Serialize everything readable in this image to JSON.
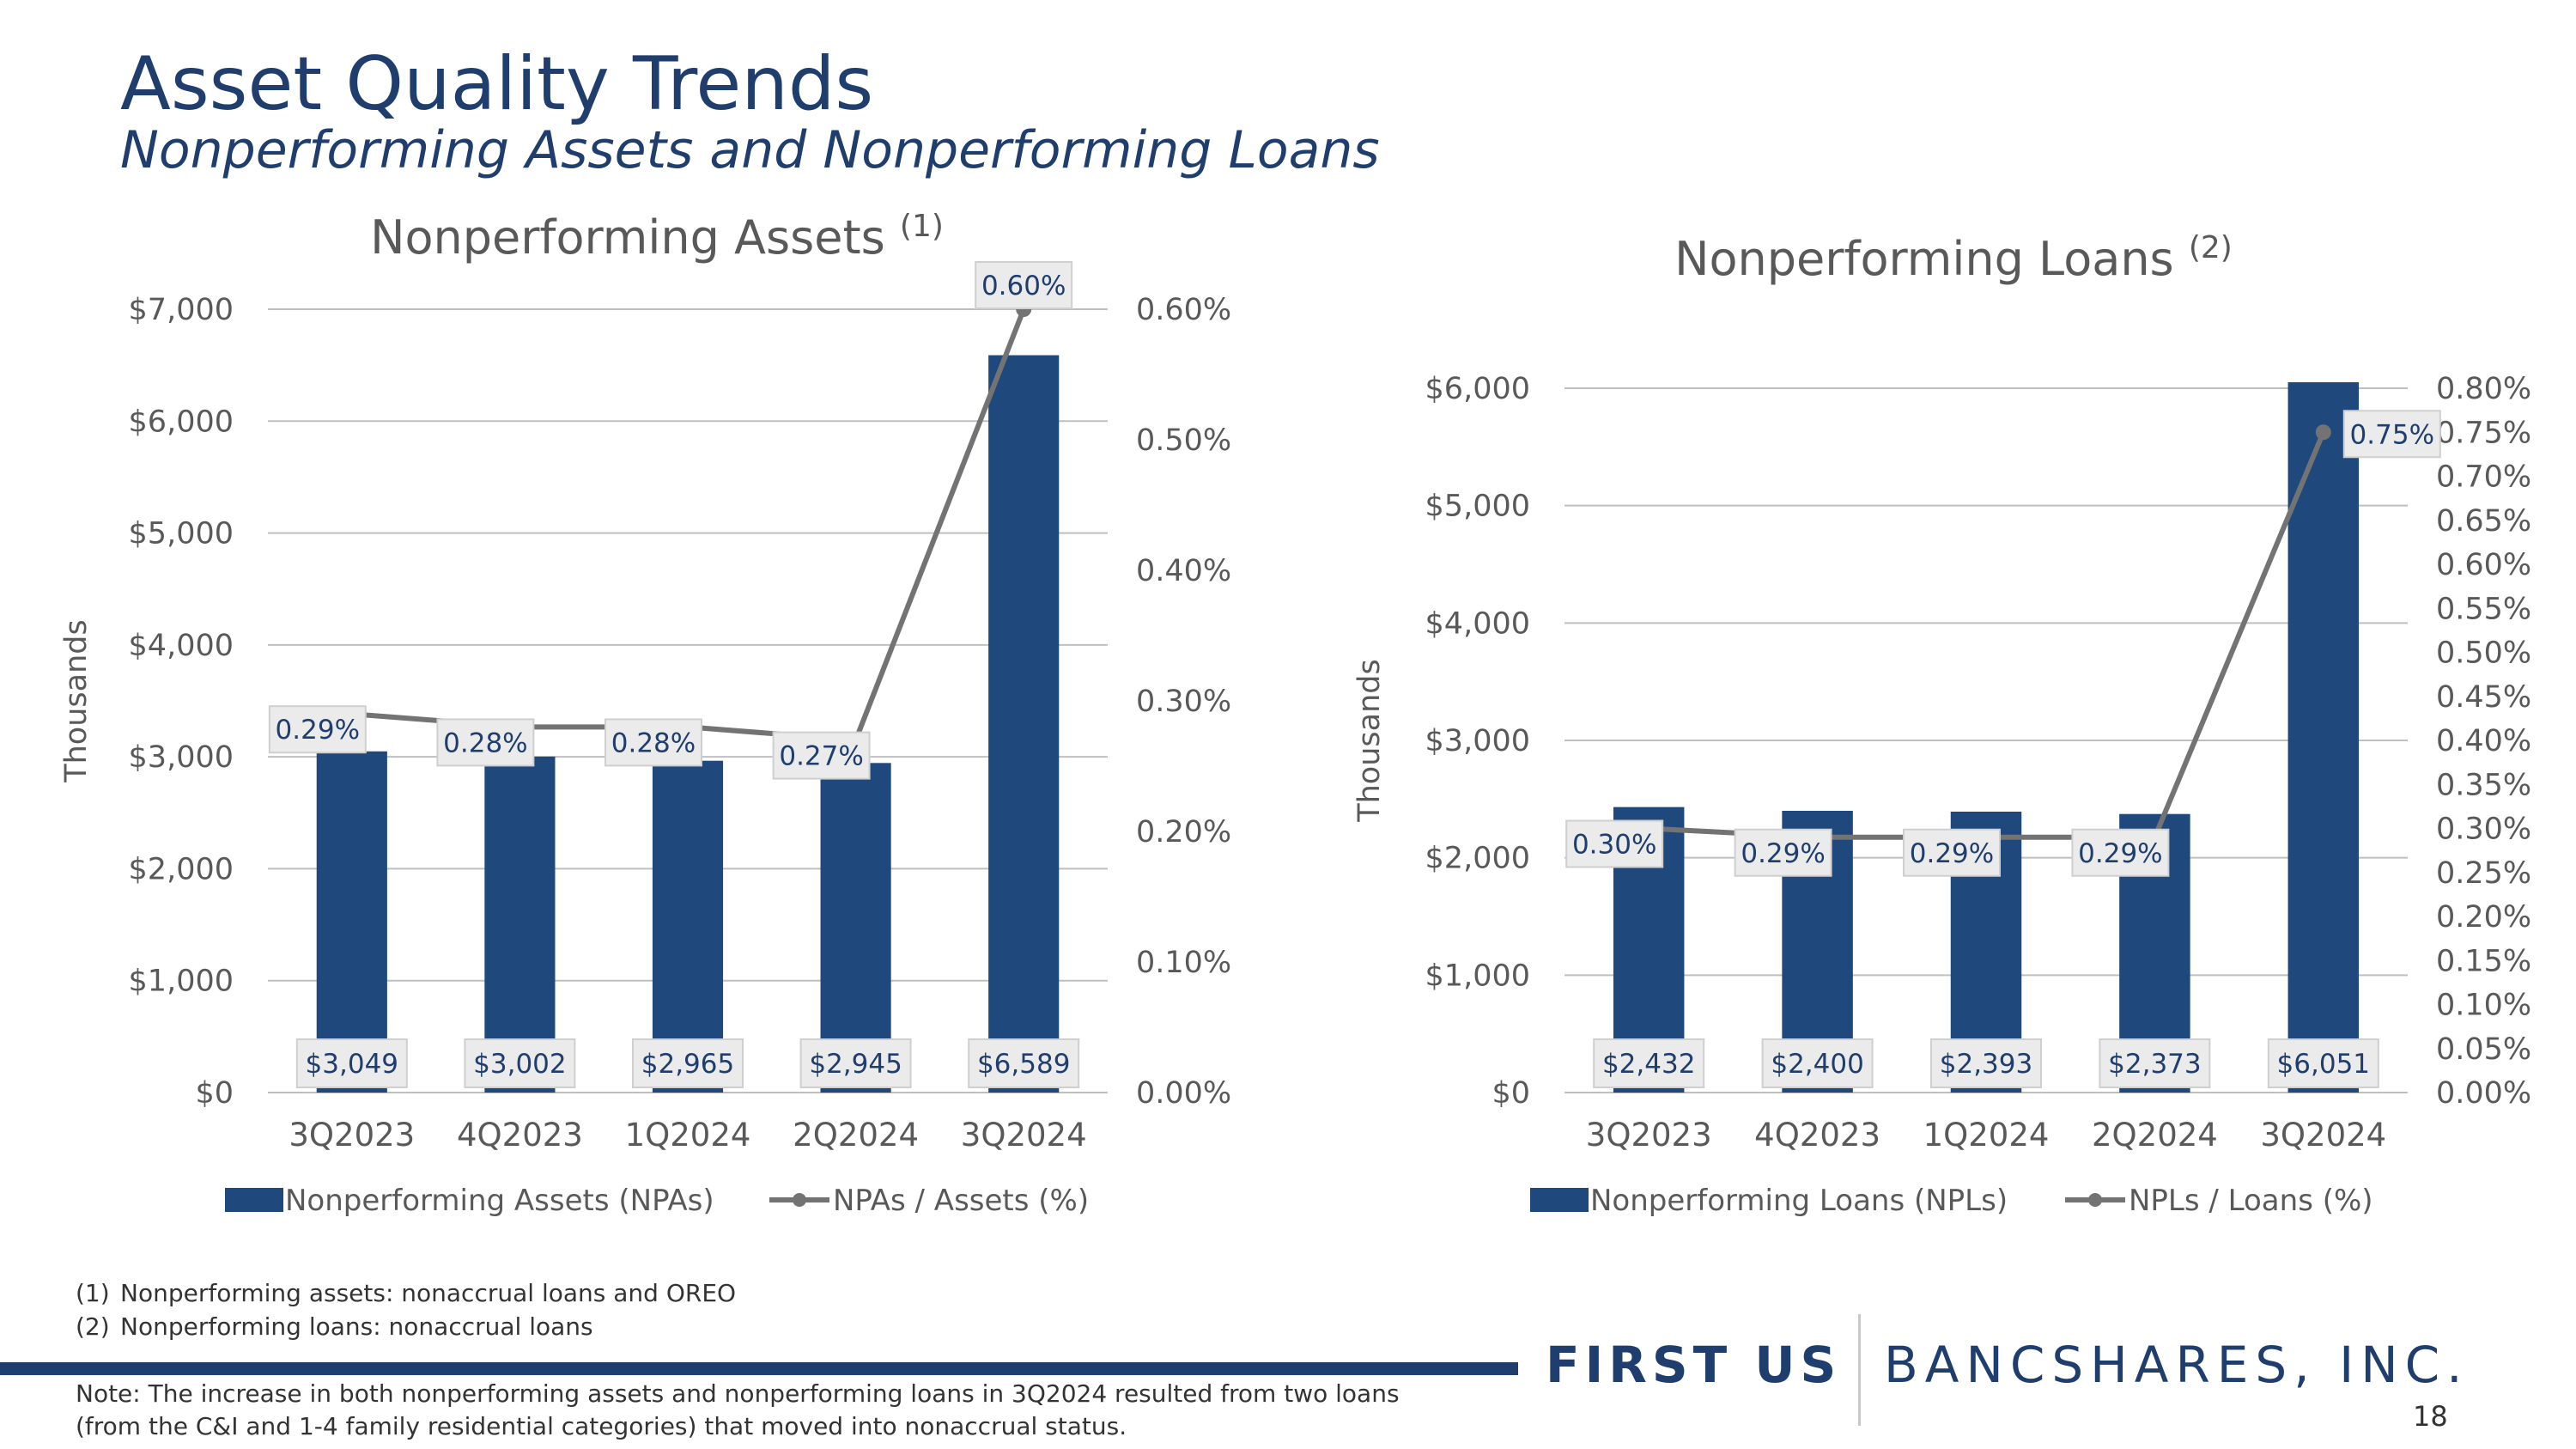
{
  "page": {
    "title": "Asset Quality Trends",
    "subtitle": "Nonperforming Assets and Nonperforming Loans",
    "footnotes": [
      {
        "num": "(1)",
        "text": "Nonperforming assets: nonaccrual loans and OREO"
      },
      {
        "num": "(2)",
        "text": "Nonperforming loans: nonaccrual loans"
      }
    ],
    "note": "Note: The increase in both nonperforming assets and nonperforming loans in 3Q2024 resulted from two loans (from the C&I and 1-4 family residential categories) that moved into nonaccrual status.",
    "logo_first": "FIRST US",
    "logo_rest": "BANCSHARES, INC.",
    "page_number": "18"
  },
  "colors": {
    "bar": "#1f497d",
    "line": "#737373",
    "label_bg": "#ebebeb",
    "label_text": "#1f3e6e",
    "axis_text": "#595959",
    "grid": "#bfbfbf"
  },
  "chart_data": [
    {
      "type": "bar",
      "title": "Nonperforming Assets",
      "title_sup": "(1)",
      "categories": [
        "3Q2023",
        "4Q2023",
        "1Q2024",
        "2Q2024",
        "3Q2024"
      ],
      "ylabel": "Thousands",
      "ylim": [
        0,
        7000
      ],
      "yticks": [
        "$0",
        "$1,000",
        "$2,000",
        "$3,000",
        "$4,000",
        "$5,000",
        "$6,000",
        "$7,000"
      ],
      "y2lim": [
        0,
        0.6
      ],
      "y2ticks": [
        "0.00%",
        "0.10%",
        "0.20%",
        "0.30%",
        "0.40%",
        "0.50%",
        "0.60%"
      ],
      "grid": true,
      "legend_position": "bottom",
      "series": [
        {
          "name": "Nonperforming Assets (NPAs)",
          "type": "bar",
          "axis": "left",
          "values": [
            3049,
            3002,
            2965,
            2945,
            6589
          ],
          "labels": [
            "$3,049",
            "$3,002",
            "$2,965",
            "$2,945",
            "$6,589"
          ]
        },
        {
          "name": "NPAs / Assets (%)",
          "type": "line",
          "axis": "right",
          "values": [
            0.29,
            0.28,
            0.28,
            0.27,
            0.6
          ],
          "labels": [
            "0.29%",
            "0.28%",
            "0.28%",
            "0.27%",
            "0.60%"
          ]
        }
      ]
    },
    {
      "type": "bar",
      "title": "Nonperforming Loans",
      "title_sup": "(2)",
      "categories": [
        "3Q2023",
        "4Q2023",
        "1Q2024",
        "2Q2024",
        "3Q2024"
      ],
      "ylabel": "Thousands",
      "ylim": [
        0,
        6000
      ],
      "yticks": [
        "$0",
        "$1,000",
        "$2,000",
        "$3,000",
        "$4,000",
        "$5,000",
        "$6,000"
      ],
      "y2lim": [
        0,
        0.8
      ],
      "y2ticks": [
        "0.00%",
        "0.05%",
        "0.10%",
        "0.15%",
        "0.20%",
        "0.25%",
        "0.30%",
        "0.35%",
        "0.40%",
        "0.45%",
        "0.50%",
        "0.55%",
        "0.60%",
        "0.65%",
        "0.70%",
        "0.75%",
        "0.80%"
      ],
      "grid": true,
      "legend_position": "bottom",
      "series": [
        {
          "name": "Nonperforming Loans (NPLs)",
          "type": "bar",
          "axis": "left",
          "values": [
            2432,
            2400,
            2393,
            2373,
            6051
          ],
          "labels": [
            "$2,432",
            "$2,400",
            "$2,393",
            "$2,373",
            "$6,051"
          ]
        },
        {
          "name": "NPLs / Loans (%)",
          "type": "line",
          "axis": "right",
          "values": [
            0.3,
            0.29,
            0.29,
            0.29,
            0.75
          ],
          "labels": [
            "0.30%",
            "0.29%",
            "0.29%",
            "0.29%",
            "0.75%"
          ]
        }
      ]
    }
  ]
}
